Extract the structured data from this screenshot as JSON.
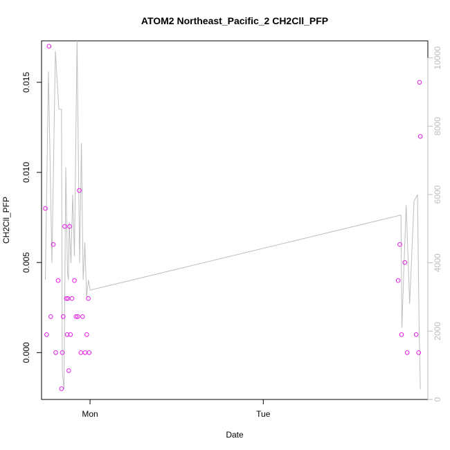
{
  "chart_data": {
    "type": "scatter",
    "title": "ATOM2 Northeast_Pacific_2 CH2Cll_PFP",
    "xlabel": "Date",
    "ylabel": "CH2Cll_PFP",
    "x_ticks": [
      "Mon",
      "Tue"
    ],
    "y_ticks": [
      "0.000",
      "0.005",
      "0.010",
      "0.015"
    ],
    "y2_ticks": [
      "0",
      "2000",
      "4000",
      "6000",
      "8000",
      "10000"
    ],
    "xlim_days": [
      -0.28,
      1.95
    ],
    "ylim": [
      -0.0026,
      0.0173
    ],
    "y2lim": [
      0,
      10500
    ],
    "grid": false,
    "points_color": "#e619e6",
    "line_color": "#bebebe",
    "series": [
      {
        "kind": "points",
        "x_days": [
          -0.258,
          -0.251,
          -0.237,
          -0.227,
          -0.212,
          -0.198,
          -0.184,
          -0.165,
          -0.16,
          -0.155,
          -0.146,
          -0.137,
          -0.132,
          -0.128,
          -0.123,
          -0.118,
          -0.113,
          -0.104,
          -0.09,
          -0.081,
          -0.071,
          -0.062,
          -0.053,
          -0.043,
          -0.029,
          -0.019,
          -0.01,
          -0.005,
          1.779,
          1.788,
          1.798,
          1.817,
          1.831,
          1.883,
          1.897,
          1.902,
          1.907
        ],
        "values": [
          0.008,
          0.001,
          0.017,
          0.002,
          0.006,
          0.0,
          0.004,
          -0.002,
          0.0,
          0.002,
          0.007,
          0.003,
          0.001,
          0.003,
          -0.001,
          0.007,
          0.001,
          0.003,
          0.004,
          0.002,
          0.002,
          0.009,
          0.0,
          0.002,
          0.0,
          0.001,
          0.003,
          0.0,
          0.004,
          0.006,
          0.001,
          0.005,
          0.0,
          0.001,
          0.0,
          0.015,
          0.012
        ]
      },
      {
        "kind": "line",
        "axis": "right",
        "x_days": [
          -0.258,
          -0.24,
          -0.22,
          -0.2,
          -0.18,
          -0.165,
          -0.16,
          -0.15,
          -0.14,
          -0.13,
          -0.125,
          -0.12,
          -0.11,
          -0.1,
          -0.09,
          -0.075,
          -0.06,
          -0.05,
          -0.04,
          -0.03,
          -0.02,
          -0.01,
          0.0,
          1.795,
          1.8,
          1.81,
          1.825,
          1.845,
          1.87,
          1.89,
          1.9,
          1.907
        ],
        "values": [
          3500,
          9600,
          4000,
          10200,
          8500,
          8500,
          800,
          300,
          6800,
          3700,
          3500,
          5200,
          4000,
          6000,
          4200,
          10500,
          4000,
          7500,
          3500,
          4600,
          3000,
          3500,
          3200,
          5400,
          2100,
          3600,
          5700,
          2800,
          5800,
          6000,
          2000,
          300
        ]
      }
    ]
  }
}
